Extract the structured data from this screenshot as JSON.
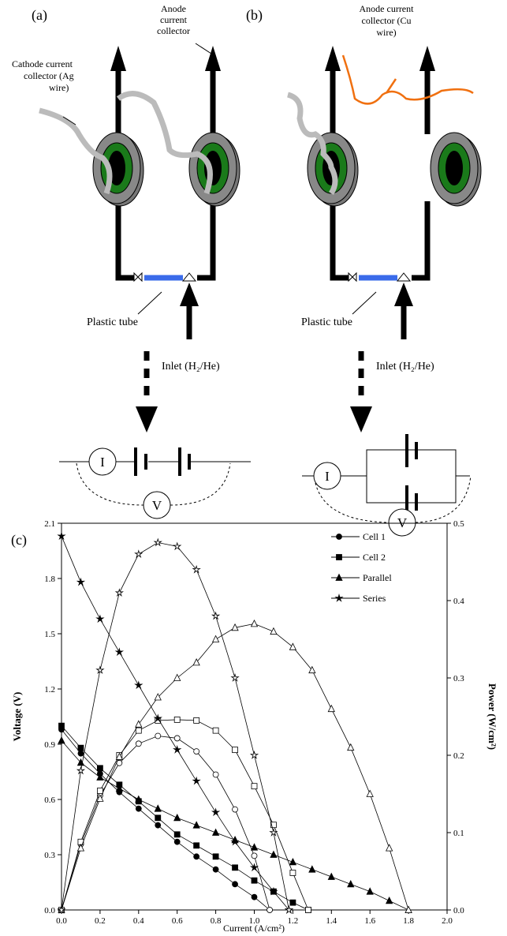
{
  "diagram": {
    "panel_a": {
      "label": "(a)",
      "anode_label": [
        "Anode",
        "current",
        "collector"
      ],
      "cathode_label": [
        "Cathode current",
        "collector (Ag",
        "wire)"
      ],
      "tube_label": "Plastic tube",
      "inlet_label": "Inlet (H₂/He)",
      "current_meter": "I",
      "voltage_meter": "V"
    },
    "panel_b": {
      "label": "(b)",
      "anode_label": [
        "Anode current",
        "collector (Cu",
        "wire)"
      ],
      "tube_label": "Plastic tube",
      "inlet_label": "Inlet (H₂/He)",
      "current_meter": "I",
      "voltage_meter": "V"
    }
  },
  "chart_data": {
    "type": "line",
    "panel_label": "(c)",
    "xlabel": "Current (A/cm²)",
    "ylabel": "Voltage (V)",
    "y2label": "Power (W/cm²)",
    "xlim": [
      0,
      2
    ],
    "xticks": [
      {
        "value": 0,
        "label": "0.0"
      },
      0.2,
      0.4,
      0.6,
      0.8,
      {
        "value": 1,
        "label": "1.0"
      },
      1.2,
      1.4,
      1.6,
      1.8,
      {
        "value": 2,
        "label": "2.0"
      }
    ],
    "ylim": [
      0,
      2.1
    ],
    "yticks": [
      {
        "value": 0,
        "label": "0.0"
      },
      0.3,
      0.6,
      0.9,
      1.2,
      1.5,
      1.8,
      2.1
    ],
    "y2lim": [
      0,
      0.5
    ],
    "y2ticks": [
      {
        "value": 0,
        "label": "0.0"
      },
      0.1,
      0.2,
      0.3,
      0.4,
      0.5
    ],
    "legend": "upper right",
    "series": [
      {
        "name": "Cell 1",
        "color": "#000000",
        "marker": "circle",
        "x": [
          0,
          0.1,
          0.2,
          0.3,
          0.4,
          0.5,
          0.6,
          0.7,
          0.8,
          0.9,
          1.0,
          1.08
        ],
        "values": [
          0.98,
          0.85,
          0.74,
          0.64,
          0.55,
          0.46,
          0.37,
          0.29,
          0.22,
          0.14,
          0.07,
          0
        ],
        "y2_values": [
          0,
          0.085,
          0.148,
          0.19,
          0.215,
          0.225,
          0.222,
          0.205,
          0.175,
          0.13,
          0.07,
          0
        ]
      },
      {
        "name": "Cell 2",
        "color": "#000000",
        "marker": "square",
        "x": [
          0,
          0.1,
          0.2,
          0.3,
          0.4,
          0.5,
          0.6,
          0.7,
          0.8,
          0.9,
          1.0,
          1.1,
          1.2,
          1.28
        ],
        "values": [
          1.0,
          0.88,
          0.77,
          0.68,
          0.59,
          0.5,
          0.41,
          0.35,
          0.29,
          0.23,
          0.16,
          0.1,
          0.04,
          0
        ],
        "y2_values": [
          0,
          0.088,
          0.154,
          0.2,
          0.232,
          0.245,
          0.246,
          0.245,
          0.232,
          0.207,
          0.16,
          0.11,
          0.048,
          0
        ]
      },
      {
        "name": "Parallel",
        "color": "#000000",
        "marker": "triangle",
        "x": [
          0,
          0.1,
          0.2,
          0.3,
          0.4,
          0.5,
          0.6,
          0.7,
          0.8,
          0.9,
          1.0,
          1.1,
          1.2,
          1.3,
          1.4,
          1.5,
          1.6,
          1.7,
          1.8
        ],
        "values": [
          0.92,
          0.8,
          0.72,
          0.66,
          0.6,
          0.55,
          0.5,
          0.46,
          0.42,
          0.38,
          0.34,
          0.3,
          0.26,
          0.22,
          0.18,
          0.14,
          0.1,
          0.05,
          0
        ],
        "y2_values": [
          0,
          0.08,
          0.144,
          0.198,
          0.24,
          0.275,
          0.3,
          0.32,
          0.35,
          0.365,
          0.37,
          0.36,
          0.34,
          0.31,
          0.26,
          0.21,
          0.15,
          0.08,
          0
        ]
      },
      {
        "name": "Series",
        "color": "#000000",
        "marker": "star",
        "x": [
          0,
          0.1,
          0.2,
          0.3,
          0.4,
          0.5,
          0.6,
          0.7,
          0.8,
          0.9,
          1.0,
          1.1,
          1.18
        ],
        "values": [
          2.03,
          1.78,
          1.58,
          1.4,
          1.22,
          1.04,
          0.87,
          0.7,
          0.53,
          0.37,
          0.23,
          0.1,
          0
        ],
        "y2_values": [
          0,
          0.18,
          0.31,
          0.41,
          0.46,
          0.475,
          0.47,
          0.44,
          0.38,
          0.3,
          0.2,
          0.1,
          0
        ]
      }
    ]
  }
}
